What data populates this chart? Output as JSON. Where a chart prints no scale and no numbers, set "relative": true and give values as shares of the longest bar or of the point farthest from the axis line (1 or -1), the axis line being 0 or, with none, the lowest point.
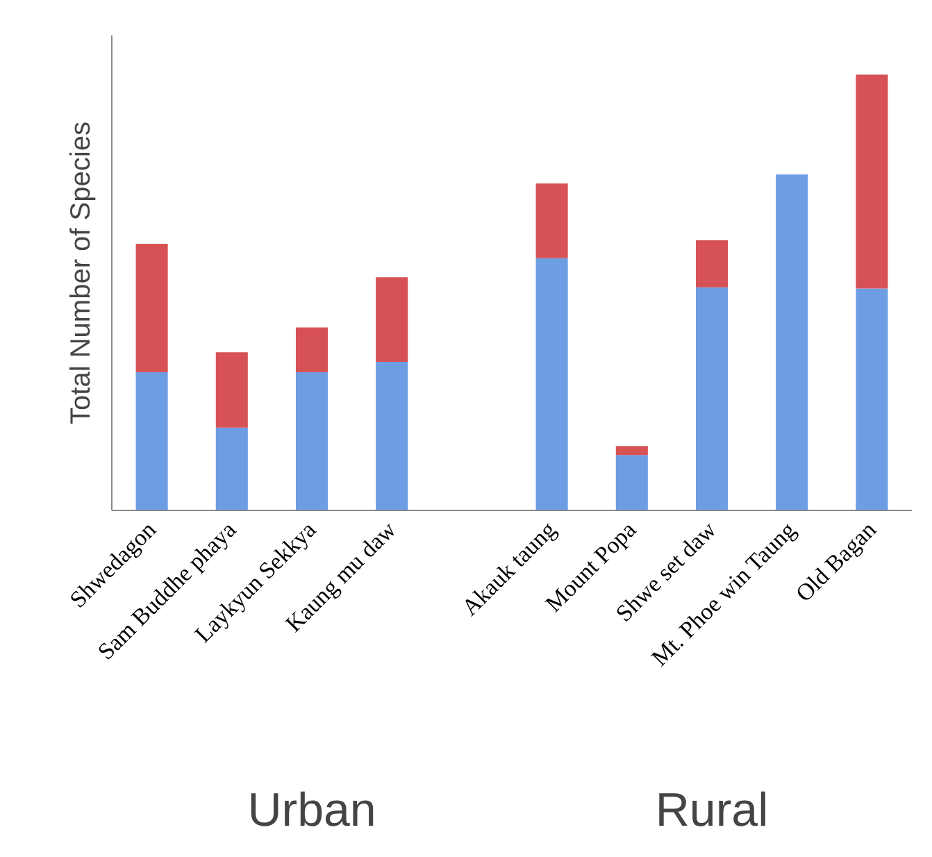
{
  "chart_data": {
    "type": "bar",
    "stacked": true,
    "relative": true,
    "ylabel": "Total Number of Species",
    "categories": [
      "Shwedagon",
      "Sam Buddhe phaya",
      "Laykyun Sekkya",
      "Kaung mu daw",
      null,
      "Akauk taung",
      "Mount Popa",
      "Shwe set daw",
      "Mt. Phoe win Taung",
      "Old Bagan"
    ],
    "series": [
      {
        "color": "#6d9de3",
        "values": [
          0.317,
          0.19,
          0.317,
          0.341,
          null,
          0.579,
          0.127,
          0.512,
          0.771,
          0.509
        ]
      },
      {
        "color": "#d65255",
        "values": [
          0.295,
          0.173,
          0.103,
          0.194,
          null,
          0.171,
          0.021,
          0.108,
          null,
          0.491
        ]
      }
    ],
    "annotations": [
      "Urban",
      "Rural"
    ],
    "grid": false
  }
}
